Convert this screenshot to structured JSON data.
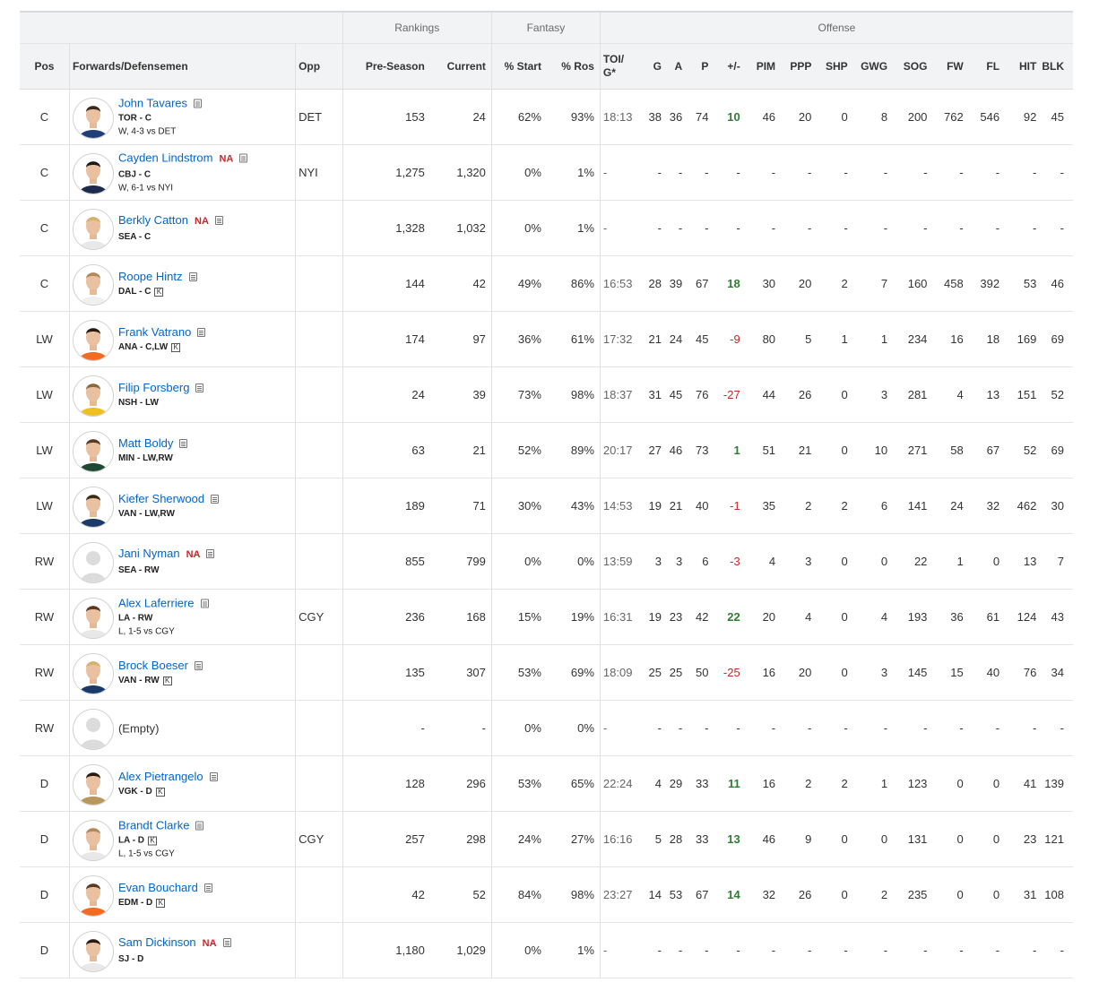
{
  "groups": {
    "rankings": "Rankings",
    "fantasy": "Fantasy",
    "offense": "Offense"
  },
  "columns": {
    "pos": "Pos",
    "player": "Forwards/Defensemen",
    "opp": "Opp",
    "preseason": "Pre-Season",
    "current": "Current",
    "pct_start": "% Start",
    "pct_ros": "% Ros",
    "toi_line1": "TOI/",
    "toi_line2": "G*",
    "g": "G",
    "a": "A",
    "p": "P",
    "pm": "+/-",
    "pim": "PIM",
    "ppp": "PPP",
    "shp": "SHP",
    "gwg": "GWG",
    "sog": "SOG",
    "fw": "FW",
    "fl": "FL",
    "hit": "HIT",
    "blk": "BLK"
  },
  "colors": {
    "link": "#0066cc",
    "na": "#c8262c",
    "positive": "#2e7d32",
    "negative": "#c62828",
    "header_bg": "#f2f3f4"
  },
  "rows": [
    {
      "pos": "C",
      "name": "John Tavares",
      "na": "",
      "team": "TOR - C",
      "k": false,
      "game": "W, 4-3 vs DET",
      "opp": "DET",
      "pre": "153",
      "cur": "24",
      "start": "62%",
      "ros": "93%",
      "toi": "18:13",
      "g": "38",
      "a": "36",
      "p": "74",
      "pm": "10",
      "pm_sign": "pos",
      "pim": "46",
      "ppp": "20",
      "shp": "0",
      "gwg": "8",
      "sog": "200",
      "fw": "762",
      "fl": "546",
      "hit": "92",
      "blk": "45",
      "avatar": "player-photo",
      "jersey": "#1f3f7a",
      "hair": "#3a2a1e"
    },
    {
      "pos": "C",
      "name": "Cayden Lindstrom",
      "na": "NA",
      "team": "CBJ - C",
      "k": false,
      "game": "W, 6-1 vs NYI",
      "opp": "NYI",
      "pre": "1,275",
      "cur": "1,320",
      "start": "0%",
      "ros": "1%",
      "toi": "-",
      "g": "-",
      "a": "-",
      "p": "-",
      "pm": "-",
      "pm_sign": "none",
      "pim": "-",
      "ppp": "-",
      "shp": "-",
      "gwg": "-",
      "sog": "-",
      "fw": "-",
      "fl": "-",
      "hit": "-",
      "blk": "-",
      "avatar": "player-photo",
      "jersey": "#1d2b4f",
      "hair": "#1a1a1a"
    },
    {
      "pos": "C",
      "name": "Berkly Catton",
      "na": "NA",
      "team": "SEA - C",
      "k": false,
      "game": "",
      "opp": "",
      "pre": "1,328",
      "cur": "1,032",
      "start": "0%",
      "ros": "1%",
      "toi": "-",
      "g": "-",
      "a": "-",
      "p": "-",
      "pm": "-",
      "pm_sign": "none",
      "pim": "-",
      "ppp": "-",
      "shp": "-",
      "gwg": "-",
      "sog": "-",
      "fw": "-",
      "fl": "-",
      "hit": "-",
      "blk": "-",
      "avatar": "player-photo",
      "jersey": "#e8e8e8",
      "hair": "#d8b070"
    },
    {
      "pos": "C",
      "name": "Roope Hintz",
      "na": "",
      "team": "DAL - C",
      "k": true,
      "game": "",
      "opp": "",
      "pre": "144",
      "cur": "42",
      "start": "49%",
      "ros": "86%",
      "toi": "16:53",
      "g": "28",
      "a": "39",
      "p": "67",
      "pm": "18",
      "pm_sign": "pos",
      "pim": "30",
      "ppp": "20",
      "shp": "2",
      "gwg": "7",
      "sog": "160",
      "fw": "458",
      "fl": "392",
      "hit": "53",
      "blk": "46",
      "avatar": "player-photo",
      "jersey": "#f0f0f0",
      "hair": "#b08a5a"
    },
    {
      "pos": "LW",
      "name": "Frank Vatrano",
      "na": "",
      "team": "ANA - C,LW",
      "k": true,
      "game": "",
      "opp": "",
      "pre": "174",
      "cur": "97",
      "start": "36%",
      "ros": "61%",
      "toi": "17:32",
      "g": "21",
      "a": "24",
      "p": "45",
      "pm": "-9",
      "pm_sign": "neg",
      "pim": "80",
      "ppp": "5",
      "shp": "1",
      "gwg": "1",
      "sog": "234",
      "fw": "16",
      "fl": "18",
      "hit": "169",
      "blk": "69",
      "avatar": "player-photo",
      "jersey": "#f26b21",
      "hair": "#2a1a10"
    },
    {
      "pos": "LW",
      "name": "Filip Forsberg",
      "na": "",
      "team": "NSH - LW",
      "k": false,
      "game": "",
      "opp": "",
      "pre": "24",
      "cur": "39",
      "start": "73%",
      "ros": "98%",
      "toi": "18:37",
      "g": "31",
      "a": "45",
      "p": "76",
      "pm": "-27",
      "pm_sign": "neg",
      "pim": "44",
      "ppp": "26",
      "shp": "0",
      "gwg": "3",
      "sog": "281",
      "fw": "4",
      "fl": "13",
      "hit": "151",
      "blk": "52",
      "avatar": "player-photo",
      "jersey": "#f0c020",
      "hair": "#8a6a3a"
    },
    {
      "pos": "LW",
      "name": "Matt Boldy",
      "na": "",
      "team": "MIN - LW,RW",
      "k": false,
      "game": "",
      "opp": "",
      "pre": "63",
      "cur": "21",
      "start": "52%",
      "ros": "89%",
      "toi": "20:17",
      "g": "27",
      "a": "46",
      "p": "73",
      "pm": "1",
      "pm_sign": "pos",
      "pim": "51",
      "ppp": "21",
      "shp": "0",
      "gwg": "10",
      "sog": "271",
      "fw": "58",
      "fl": "67",
      "hit": "52",
      "blk": "69",
      "avatar": "player-photo",
      "jersey": "#1e4a34",
      "hair": "#5a3a22"
    },
    {
      "pos": "LW",
      "name": "Kiefer Sherwood",
      "na": "",
      "team": "VAN - LW,RW",
      "k": false,
      "game": "",
      "opp": "",
      "pre": "189",
      "cur": "71",
      "start": "30%",
      "ros": "43%",
      "toi": "14:53",
      "g": "19",
      "a": "21",
      "p": "40",
      "pm": "-1",
      "pm_sign": "neg",
      "pim": "35",
      "ppp": "2",
      "shp": "2",
      "gwg": "6",
      "sog": "141",
      "fw": "24",
      "fl": "32",
      "hit": "462",
      "blk": "30",
      "avatar": "player-photo",
      "jersey": "#1a3a6a",
      "hair": "#3a2a1a"
    },
    {
      "pos": "RW",
      "name": "Jani Nyman",
      "na": "NA",
      "team": "SEA - RW",
      "k": false,
      "game": "",
      "opp": "",
      "pre": "855",
      "cur": "799",
      "start": "0%",
      "ros": "0%",
      "toi": "13:59",
      "g": "3",
      "a": "3",
      "p": "6",
      "pm": "-3",
      "pm_sign": "neg",
      "pim": "4",
      "ppp": "3",
      "shp": "0",
      "gwg": "0",
      "sog": "22",
      "fw": "1",
      "fl": "0",
      "hit": "13",
      "blk": "7",
      "avatar": "placeholder-avatar",
      "jersey": "",
      "hair": ""
    },
    {
      "pos": "RW",
      "name": "Alex Laferriere",
      "na": "",
      "team": "LA - RW",
      "k": false,
      "game": "L, 1-5 vs CGY",
      "opp": "CGY",
      "pre": "236",
      "cur": "168",
      "start": "15%",
      "ros": "19%",
      "toi": "16:31",
      "g": "19",
      "a": "23",
      "p": "42",
      "pm": "22",
      "pm_sign": "pos",
      "pim": "20",
      "ppp": "4",
      "shp": "0",
      "gwg": "4",
      "sog": "193",
      "fw": "36",
      "fl": "61",
      "hit": "124",
      "blk": "43",
      "avatar": "player-photo",
      "jersey": "#e8e8e8",
      "hair": "#5a3a22"
    },
    {
      "pos": "RW",
      "name": "Brock Boeser",
      "na": "",
      "team": "VAN - RW",
      "k": true,
      "game": "",
      "opp": "",
      "pre": "135",
      "cur": "307",
      "start": "53%",
      "ros": "69%",
      "toi": "18:09",
      "g": "25",
      "a": "25",
      "p": "50",
      "pm": "-25",
      "pm_sign": "neg",
      "pim": "16",
      "ppp": "20",
      "shp": "0",
      "gwg": "3",
      "sog": "145",
      "fw": "15",
      "fl": "40",
      "hit": "76",
      "blk": "34",
      "avatar": "player-photo",
      "jersey": "#1a3a6a",
      "hair": "#d8b070"
    },
    {
      "pos": "RW",
      "name": "(Empty)",
      "na": "",
      "team": "",
      "k": false,
      "game": "",
      "opp": "",
      "pre": "-",
      "cur": "-",
      "start": "0%",
      "ros": "0%",
      "toi": "-",
      "g": "-",
      "a": "-",
      "p": "-",
      "pm": "-",
      "pm_sign": "none",
      "pim": "-",
      "ppp": "-",
      "shp": "-",
      "gwg": "-",
      "sog": "-",
      "fw": "-",
      "fl": "-",
      "hit": "-",
      "blk": "-",
      "avatar": "placeholder-avatar",
      "empty": true,
      "jersey": "",
      "hair": ""
    },
    {
      "pos": "D",
      "name": "Alex Pietrangelo",
      "na": "",
      "team": "VGK - D",
      "k": true,
      "game": "",
      "opp": "",
      "pre": "128",
      "cur": "296",
      "start": "53%",
      "ros": "65%",
      "toi": "22:24",
      "g": "4",
      "a": "29",
      "p": "33",
      "pm": "11",
      "pm_sign": "pos",
      "pim": "16",
      "ppp": "2",
      "shp": "2",
      "gwg": "1",
      "sog": "123",
      "fw": "0",
      "fl": "0",
      "hit": "41",
      "blk": "139",
      "avatar": "player-photo",
      "jersey": "#b9975b",
      "hair": "#2a1a10"
    },
    {
      "pos": "D",
      "name": "Brandt Clarke",
      "na": "",
      "team": "LA - D",
      "k": true,
      "game": "L, 1-5 vs CGY",
      "opp": "CGY",
      "pre": "257",
      "cur": "298",
      "start": "24%",
      "ros": "27%",
      "toi": "16:16",
      "g": "5",
      "a": "28",
      "p": "33",
      "pm": "13",
      "pm_sign": "pos",
      "pim": "46",
      "ppp": "9",
      "shp": "0",
      "gwg": "0",
      "sog": "131",
      "fw": "0",
      "fl": "0",
      "hit": "23",
      "blk": "121",
      "avatar": "player-photo",
      "jersey": "#e8e8e8",
      "hair": "#b08a5a"
    },
    {
      "pos": "D",
      "name": "Evan Bouchard",
      "na": "",
      "team": "EDM - D",
      "k": true,
      "game": "",
      "opp": "",
      "pre": "42",
      "cur": "52",
      "start": "84%",
      "ros": "98%",
      "toi": "23:27",
      "g": "14",
      "a": "53",
      "p": "67",
      "pm": "14",
      "pm_sign": "pos",
      "pim": "32",
      "ppp": "26",
      "shp": "0",
      "gwg": "2",
      "sog": "235",
      "fw": "0",
      "fl": "0",
      "hit": "31",
      "blk": "108",
      "avatar": "player-photo",
      "jersey": "#f26b21",
      "hair": "#5a3a22"
    },
    {
      "pos": "D",
      "name": "Sam Dickinson",
      "na": "NA",
      "team": "SJ - D",
      "k": false,
      "game": "",
      "opp": "",
      "pre": "1,180",
      "cur": "1,029",
      "start": "0%",
      "ros": "1%",
      "toi": "-",
      "g": "-",
      "a": "-",
      "p": "-",
      "pm": "-",
      "pm_sign": "none",
      "pim": "-",
      "ppp": "-",
      "shp": "-",
      "gwg": "-",
      "sog": "-",
      "fw": "-",
      "fl": "-",
      "hit": "-",
      "blk": "-",
      "avatar": "player-photo",
      "jersey": "#e8e8e8",
      "hair": "#2a1a10"
    }
  ]
}
